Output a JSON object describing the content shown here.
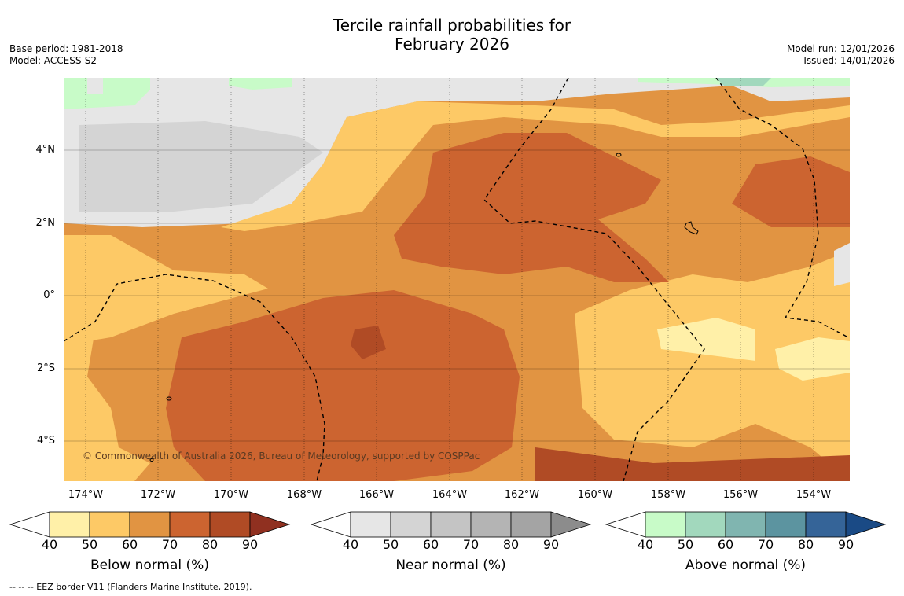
{
  "title": [
    "Tercile rainfall probabilities for",
    "February 2026"
  ],
  "meta_left": [
    "Base period: 1981-2018",
    "Model: ACCESS-S2"
  ],
  "meta_right": [
    "Model run: 12/01/2026",
    "Issued: 14/01/2026"
  ],
  "credit": "© Commonwealth of Australia 2026, Bureau of Meteorology, supported by COSPPac",
  "lat_labels": [
    "4°N",
    "2°N",
    "0°",
    "2°S",
    "4°S"
  ],
  "lon_labels": [
    "174°W",
    "172°W",
    "170°W",
    "168°W",
    "166°W",
    "164°W",
    "162°W",
    "160°W",
    "158°W",
    "156°W",
    "154°W"
  ],
  "colorbars": [
    {
      "label": "Below normal (%)",
      "ticks": [
        "40",
        "50",
        "60",
        "70",
        "80",
        "90"
      ],
      "colors": [
        "#fff0a8",
        "#fdc966",
        "#e19442",
        "#cc6430",
        "#b04b25",
        "#903020"
      ]
    },
    {
      "label": "Near normal (%)",
      "ticks": [
        "40",
        "50",
        "60",
        "70",
        "80",
        "90"
      ],
      "colors": [
        "#e6e6e6",
        "#d4d4d4",
        "#c4c4c4",
        "#b4b4b4",
        "#a4a4a4",
        "#8c8c8c"
      ]
    },
    {
      "label": "Above normal (%)",
      "ticks": [
        "40",
        "50",
        "60",
        "70",
        "80",
        "90"
      ],
      "colors": [
        "#c8fbc8",
        "#a2d8bd",
        "#80b5b0",
        "#5c94a0",
        "#356498",
        "#1a4a85"
      ]
    }
  ],
  "footnote": "--  --  -- EEZ border V11 (Flanders Marine Institute, 2019)."
}
